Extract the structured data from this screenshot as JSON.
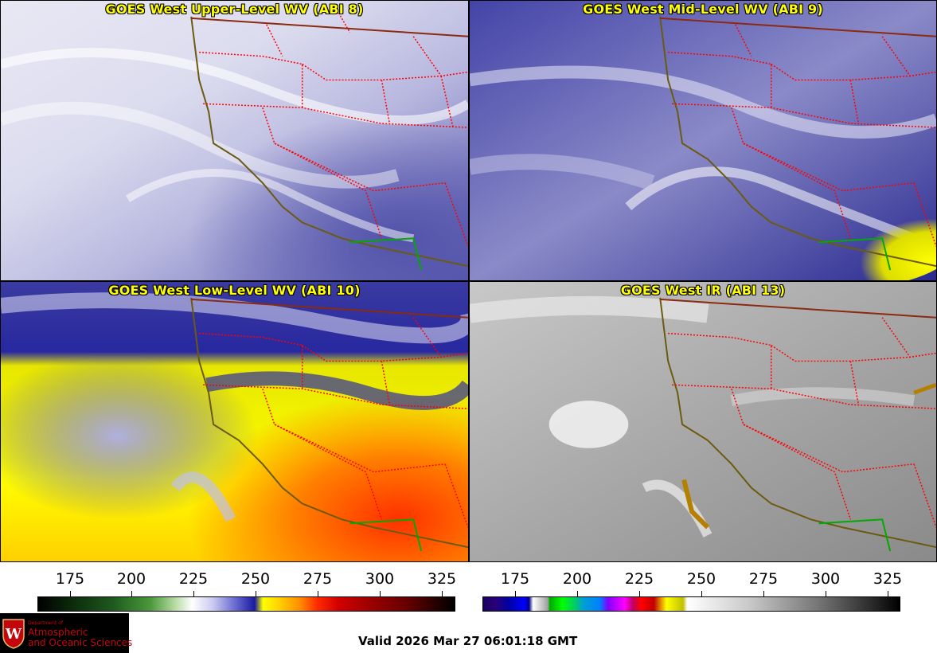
{
  "panels": [
    {
      "id": "upper",
      "title": "GOES West Upper-Level WV (ABI 8)"
    },
    {
      "id": "mid",
      "title": "GOES West Mid-Level WV (ABI 9)"
    },
    {
      "id": "low",
      "title": "GOES West Low-Level WV (ABI 10)"
    },
    {
      "id": "ir",
      "title": "GOES West IR (ABI 13)"
    }
  ],
  "colorbar_wv": {
    "ticks": [
      "175",
      "200",
      "225",
      "250",
      "275",
      "300",
      "325"
    ]
  },
  "colorbar_ir": {
    "ticks": [
      "175",
      "200",
      "225",
      "250",
      "275",
      "300",
      "325"
    ]
  },
  "logo": {
    "line1": "Department of",
    "line2": "Atmospheric",
    "line3": "and Oceanic Sciences",
    "seal_letter": "W"
  },
  "valid_time": "Valid 2026 Mar 27 06:01:18 GMT",
  "colors": {
    "title": "#ffff00",
    "state_borders": "#ff0000",
    "coastline": "#8b6914",
    "mexico_border": "#00aa00",
    "logo_text": "#c5050c"
  }
}
